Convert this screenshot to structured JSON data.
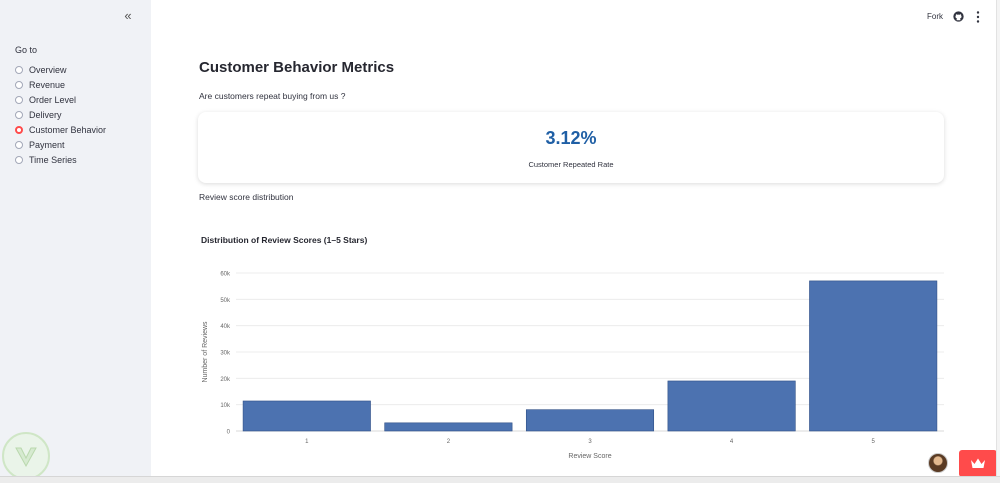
{
  "sidebar": {
    "collapse_glyph": "«",
    "goto_label": "Go to",
    "items": [
      {
        "label": "Overview",
        "checked": false
      },
      {
        "label": "Revenue",
        "checked": false
      },
      {
        "label": "Order Level",
        "checked": false
      },
      {
        "label": "Delivery",
        "checked": false
      },
      {
        "label": "Customer Behavior",
        "checked": true
      },
      {
        "label": "Payment",
        "checked": false
      },
      {
        "label": "Time Series",
        "checked": false
      }
    ]
  },
  "header": {
    "fork_label": "Fork",
    "icons": [
      "github-icon",
      "more-vertical-icon"
    ]
  },
  "main": {
    "title": "Customer Behavior Metrics",
    "question": "Are customers repeat buying from us ?",
    "metric": {
      "value": "3.12%",
      "label": "Customer Repeated Rate"
    },
    "section_label": "Review score distribution"
  },
  "colors": {
    "accent": "#ff4b4b",
    "bar": "#4c72b0",
    "metric_value": "#1f5fa5"
  },
  "chart_data": {
    "type": "bar",
    "title": "Distribution of Review Scores (1–5 Stars)",
    "xlabel": "Review Score",
    "ylabel": "Number of Reviews",
    "categories": [
      "1",
      "2",
      "3",
      "4",
      "5"
    ],
    "values": [
      11400,
      3100,
      8100,
      19000,
      57000
    ],
    "ylim": [
      0,
      60000
    ],
    "yticks": [
      0,
      10000,
      20000,
      30000,
      40000,
      50000,
      60000
    ],
    "ytick_labels": [
      "0",
      "10k",
      "20k",
      "30k",
      "40k",
      "50k",
      "60k"
    ],
    "grid": true,
    "legend": "none"
  }
}
